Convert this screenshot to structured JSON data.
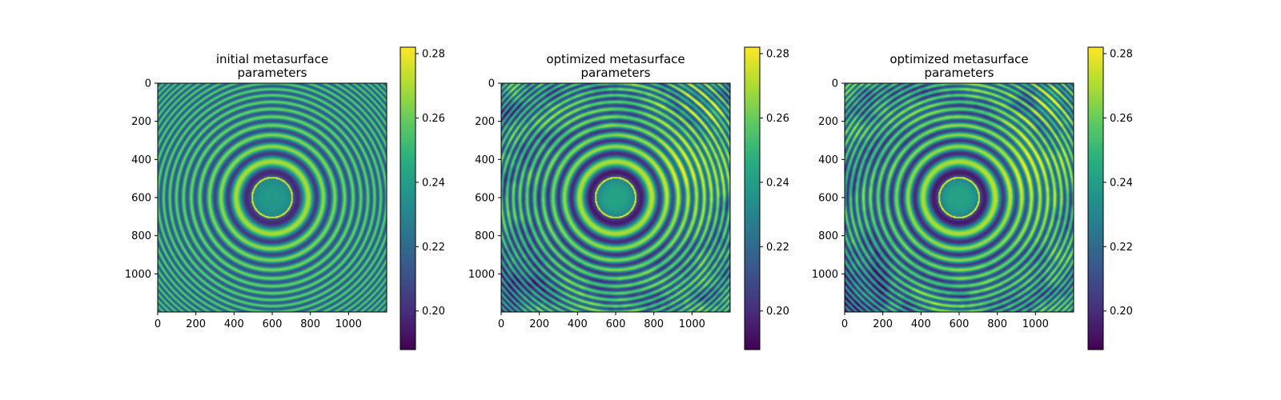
{
  "chart_data": [
    {
      "type": "heatmap",
      "title": "initial metasurface\nparameters",
      "variant": "initial",
      "x_ticks": [
        0,
        200,
        400,
        600,
        800,
        1000
      ],
      "y_ticks": [
        0,
        200,
        400,
        600,
        800,
        1000
      ],
      "xlim": [
        0,
        1200
      ],
      "ylim": [
        1200,
        0
      ],
      "colormap": "viridis",
      "colorbar": {
        "range": [
          0.188,
          0.282
        ],
        "ticks": [
          0.2,
          0.22,
          0.24,
          0.26,
          0.28
        ]
      }
    },
    {
      "type": "heatmap",
      "title": "optimized metasurface\nparameters",
      "variant": "optimized-a",
      "x_ticks": [
        0,
        200,
        400,
        600,
        800,
        1000
      ],
      "y_ticks": [
        0,
        200,
        400,
        600,
        800,
        1000
      ],
      "xlim": [
        0,
        1200
      ],
      "ylim": [
        1200,
        0
      ],
      "colormap": "viridis",
      "colorbar": {
        "range": [
          0.188,
          0.282
        ],
        "ticks": [
          0.2,
          0.22,
          0.24,
          0.26,
          0.28
        ]
      }
    },
    {
      "type": "heatmap",
      "title": "optimized metasurface\nparameters",
      "variant": "optimized-b",
      "x_ticks": [
        0,
        200,
        400,
        600,
        800,
        1000
      ],
      "y_ticks": [
        0,
        200,
        400,
        600,
        800,
        1000
      ],
      "xlim": [
        0,
        1200
      ],
      "ylim": [
        1200,
        0
      ],
      "colormap": "viridis",
      "colorbar": {
        "range": [
          0.188,
          0.282
        ],
        "ticks": [
          0.2,
          0.22,
          0.24,
          0.26,
          0.28
        ]
      }
    }
  ]
}
